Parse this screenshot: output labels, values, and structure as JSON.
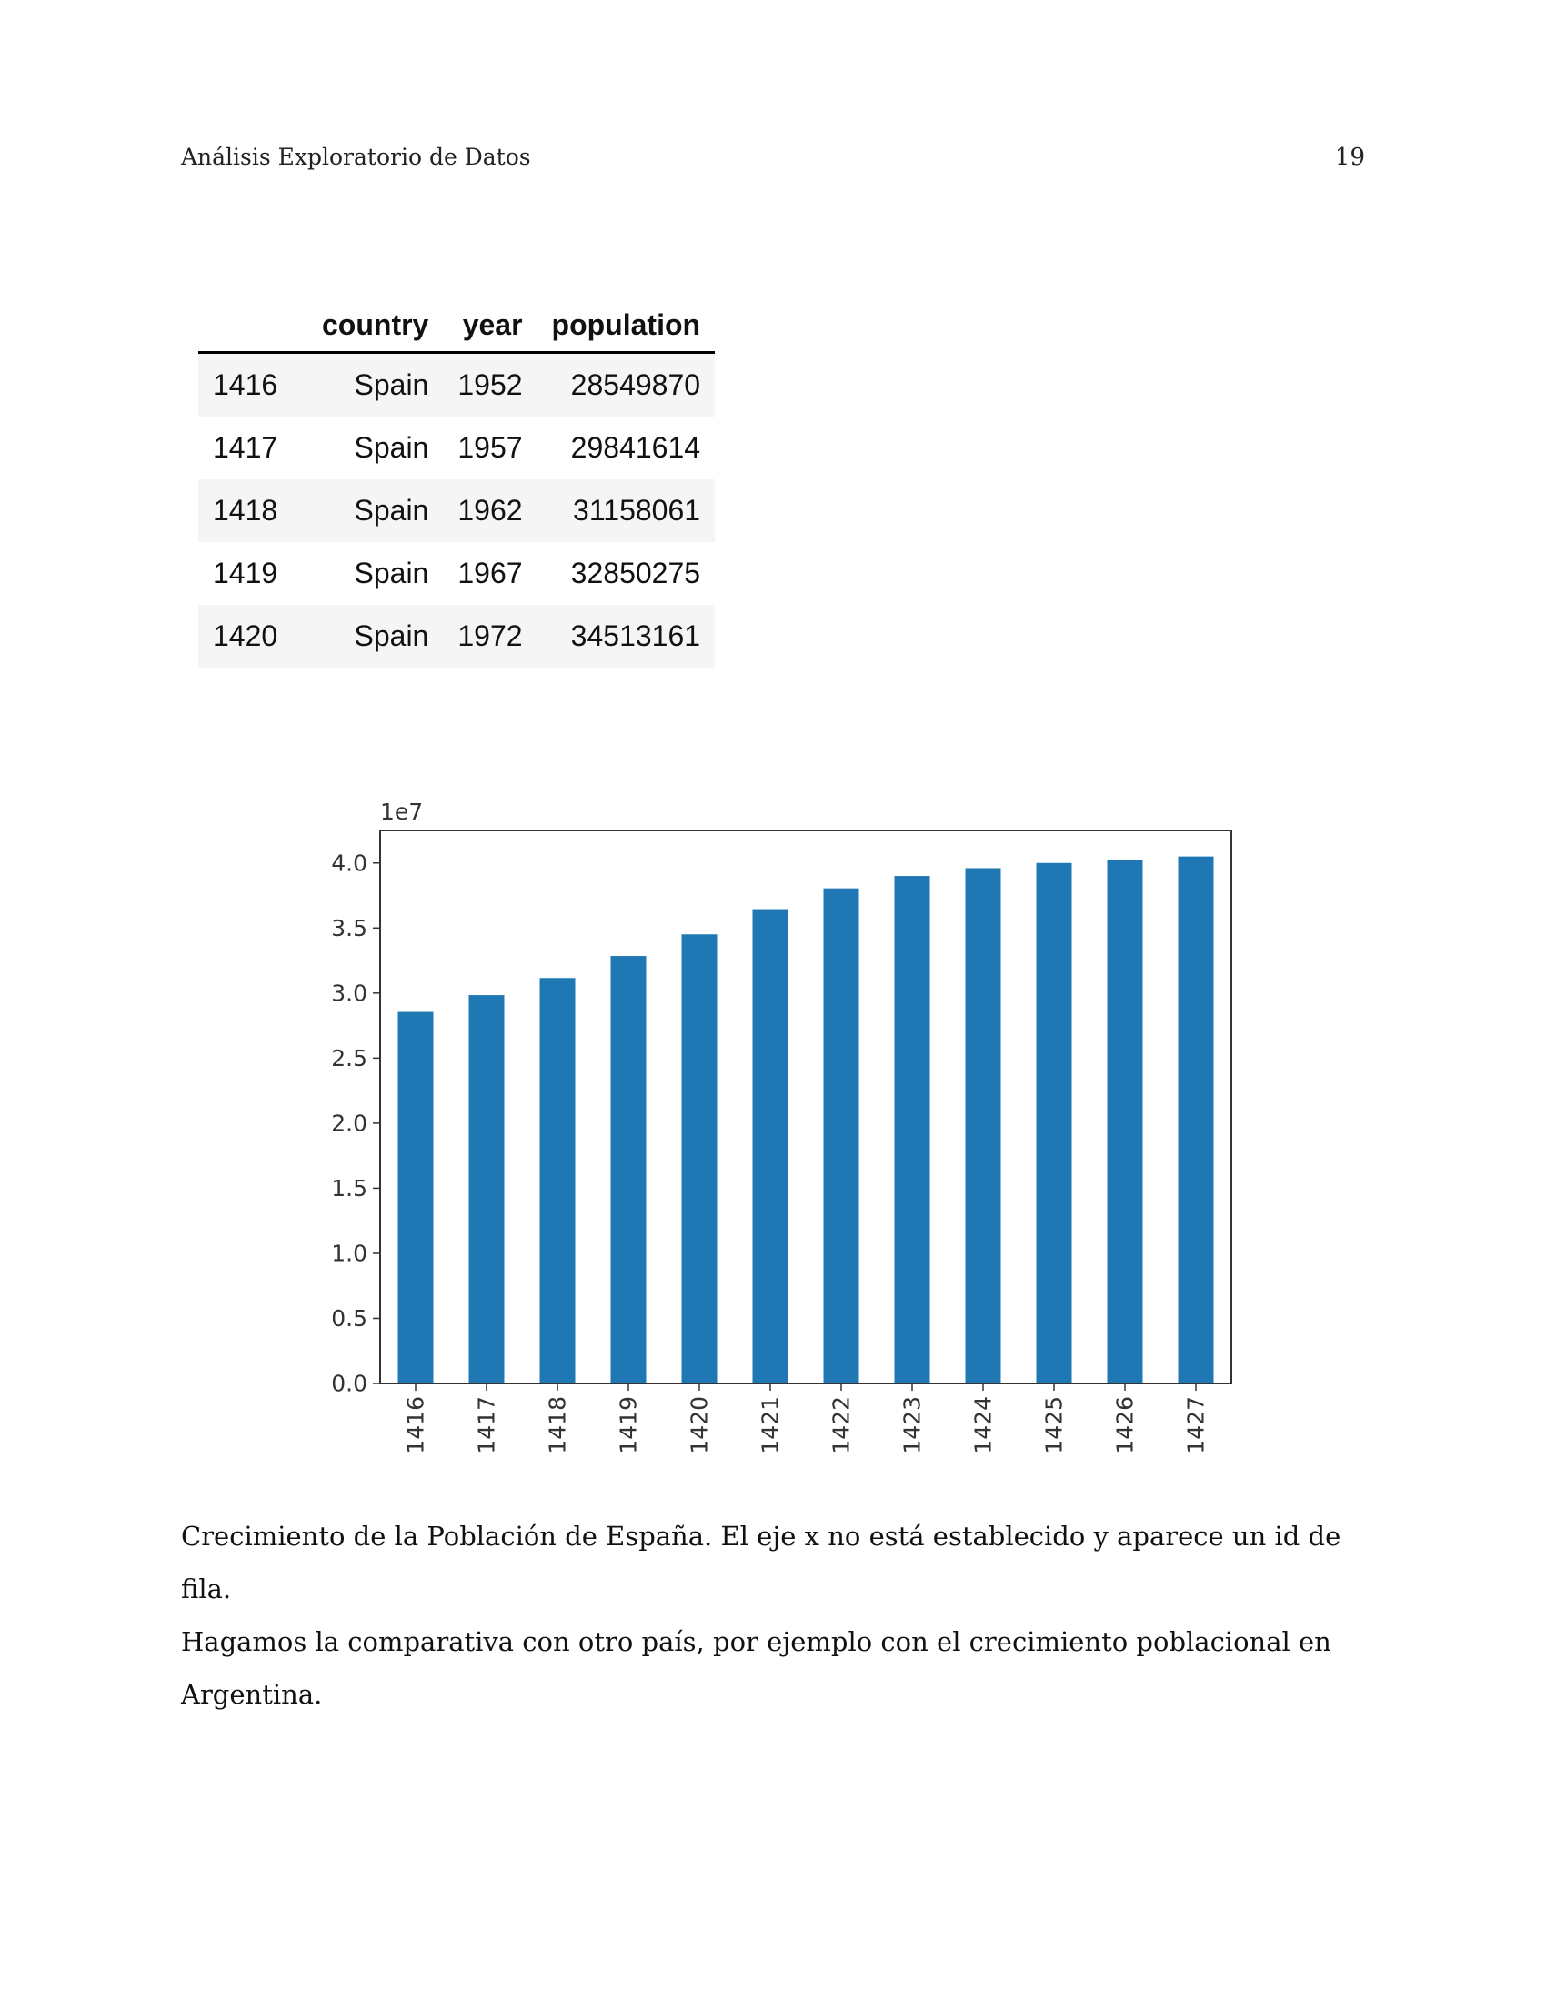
{
  "header": {
    "title": "Análisis Exploratorio de Datos",
    "page_number": "19"
  },
  "table": {
    "columns": [
      "",
      "country",
      "year",
      "population"
    ],
    "rows": [
      [
        "1416",
        "Spain",
        "1952",
        "28549870"
      ],
      [
        "1417",
        "Spain",
        "1957",
        "29841614"
      ],
      [
        "1418",
        "Spain",
        "1962",
        "31158061"
      ],
      [
        "1419",
        "Spain",
        "1967",
        "32850275"
      ],
      [
        "1420",
        "Spain",
        "1972",
        "34513161"
      ]
    ]
  },
  "chart_data": {
    "type": "bar",
    "categories": [
      "1416",
      "1417",
      "1418",
      "1419",
      "1420",
      "1421",
      "1422",
      "1423",
      "1424",
      "1425",
      "1426",
      "1427"
    ],
    "values": [
      28549870,
      29841614,
      31158061,
      32850275,
      34513161,
      36450000,
      38050000,
      39000000,
      39600000,
      40000000,
      40200000,
      40500000
    ],
    "offset_label": "1e7",
    "yticks": [
      "0.0",
      "0.5",
      "1.0",
      "1.5",
      "2.0",
      "2.5",
      "3.0",
      "3.5",
      "4.0"
    ],
    "ylim": [
      0,
      42500000
    ],
    "bar_color": "#1f77b4",
    "grid": false
  },
  "caption": {
    "line1": "Crecimiento de la Población de España. El eje x no está establecido y aparece un id de fila.",
    "line2": "Hagamos la comparativa con otro país, por ejemplo con el crecimiento poblacional en Argentina."
  }
}
